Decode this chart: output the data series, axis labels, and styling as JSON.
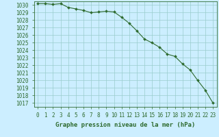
{
  "hours": [
    0,
    1,
    2,
    3,
    4,
    5,
    6,
    7,
    8,
    9,
    10,
    11,
    12,
    13,
    14,
    15,
    16,
    17,
    18,
    19,
    20,
    21,
    22,
    23
  ],
  "pressure": [
    1030.2,
    1030.2,
    1030.1,
    1030.2,
    1029.7,
    1029.5,
    1029.3,
    1029.0,
    1029.1,
    1029.2,
    1029.1,
    1028.4,
    1027.6,
    1026.6,
    1025.5,
    1025.0,
    1024.4,
    1023.5,
    1023.2,
    1022.2,
    1021.4,
    1020.0,
    1018.7,
    1017.0
  ],
  "line_color": "#2d6a2d",
  "marker": "D",
  "marker_size": 2.0,
  "line_width": 0.8,
  "bg_color": "#cceeff",
  "grid_color": "#99cccc",
  "xlabel": "Graphe pression niveau de la mer (hPa)",
  "xlabel_fontsize": 6.5,
  "tick_fontsize": 5.5,
  "ylim_min": 1016.5,
  "ylim_max": 1030.5,
  "yticks": [
    1017,
    1018,
    1019,
    1020,
    1021,
    1022,
    1023,
    1024,
    1025,
    1026,
    1027,
    1028,
    1029,
    1030
  ],
  "xticks": [
    0,
    1,
    2,
    3,
    4,
    5,
    6,
    7,
    8,
    9,
    10,
    11,
    12,
    13,
    14,
    15,
    16,
    17,
    18,
    19,
    20,
    21,
    22,
    23
  ],
  "spine_color": "#2d6a2d",
  "label_color": "#2d6a2d"
}
